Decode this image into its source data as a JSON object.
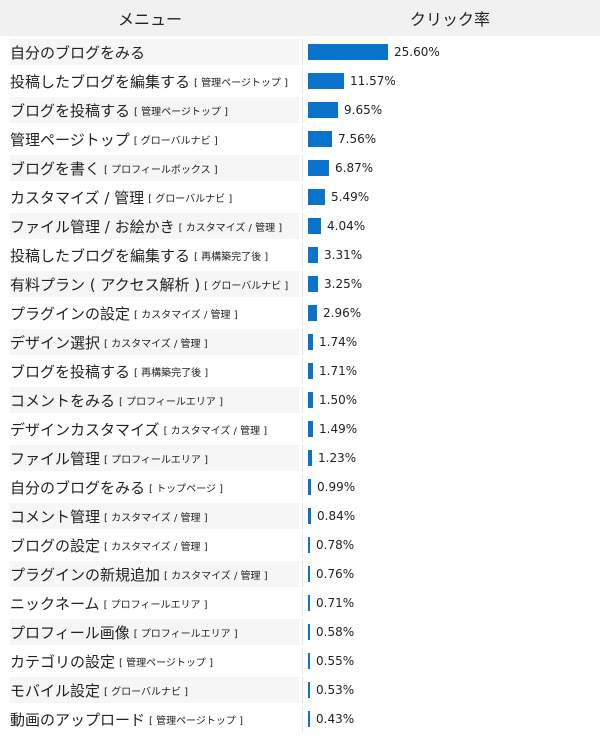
{
  "header": {
    "menu_label": "メニュー",
    "rate_label": "クリック率"
  },
  "chart_data": {
    "type": "bar",
    "orientation": "horizontal",
    "xlim": [
      0,
      25.6
    ],
    "grid": false,
    "rows": [
      {
        "name": "自分のブログをみる",
        "tag": "",
        "value": 25.6,
        "label": "25.60%"
      },
      {
        "name": "投稿したブログを編集する",
        "tag": "[ 管理ページトップ ]",
        "value": 11.57,
        "label": "11.57%"
      },
      {
        "name": "ブログを投稿する",
        "tag": "[ 管理ページトップ ]",
        "value": 9.65,
        "label": "9.65%"
      },
      {
        "name": "管理ページトップ",
        "tag": "[ グローバルナビ ]",
        "value": 7.56,
        "label": "7.56%"
      },
      {
        "name": "ブログを書く",
        "tag": "[ プロフィールボックス ]",
        "value": 6.87,
        "label": "6.87%"
      },
      {
        "name": "カスタマイズ / 管理",
        "tag": "[ グローバルナビ ]",
        "value": 5.49,
        "label": "5.49%"
      },
      {
        "name": "ファイル管理 / お絵かき",
        "tag": "[ カスタマイズ / 管理 ]",
        "value": 4.04,
        "label": "4.04%"
      },
      {
        "name": "投稿したブログを編集する",
        "tag": "[ 再構築完了後 ]",
        "value": 3.31,
        "label": "3.31%"
      },
      {
        "name": "有料プラン ( アクセス解析 )",
        "tag": "[ グローバルナビ ]",
        "value": 3.25,
        "label": "3.25%"
      },
      {
        "name": "プラグインの設定",
        "tag": "[ カスタマイズ / 管理 ]",
        "value": 2.96,
        "label": "2.96%"
      },
      {
        "name": "デザイン選択",
        "tag": "[ カスタマイズ / 管理 ]",
        "value": 1.74,
        "label": "1.74%"
      },
      {
        "name": "ブログを投稿する",
        "tag": "[ 再構築完了後 ]",
        "value": 1.71,
        "label": "1.71%"
      },
      {
        "name": "コメントをみる",
        "tag": "[ プロフィールエリア ]",
        "value": 1.5,
        "label": "1.50%"
      },
      {
        "name": "デザインカスタマイズ",
        "tag": "[ カスタマイズ / 管理 ]",
        "value": 1.49,
        "label": "1.49%"
      },
      {
        "name": "ファイル管理",
        "tag": "[ プロフィールエリア ]",
        "value": 1.23,
        "label": "1.23%"
      },
      {
        "name": "自分のブログをみる",
        "tag": "[ トップページ ]",
        "value": 0.99,
        "label": "0.99%"
      },
      {
        "name": "コメント管理",
        "tag": "[ カスタマイズ / 管理 ]",
        "value": 0.84,
        "label": "0.84%"
      },
      {
        "name": "ブログの設定",
        "tag": "[ カスタマイズ / 管理 ]",
        "value": 0.78,
        "label": "0.78%"
      },
      {
        "name": "プラグインの新規追加",
        "tag": "[ カスタマイズ / 管理 ]",
        "value": 0.76,
        "label": "0.76%"
      },
      {
        "name": "ニックネーム",
        "tag": "[ プロフィールエリア ]",
        "value": 0.71,
        "label": "0.71%"
      },
      {
        "name": "プロフィール画像",
        "tag": "[ プロフィールエリア ]",
        "value": 0.58,
        "label": "0.58%"
      },
      {
        "name": "カテゴリの設定",
        "tag": "[ 管理ページトップ ]",
        "value": 0.55,
        "label": "0.55%"
      },
      {
        "name": "モバイル設定",
        "tag": "[ グローバルナビ ]",
        "value": 0.53,
        "label": "0.53%"
      },
      {
        "name": "動画のアップロード",
        "tag": "[ 管理ページトップ ]",
        "value": 0.43,
        "label": "0.43%"
      }
    ]
  },
  "colors": {
    "bar": "#0a73cc",
    "header_bg": "#f1f1f1",
    "stripe_bg": "#f6f6f6"
  }
}
